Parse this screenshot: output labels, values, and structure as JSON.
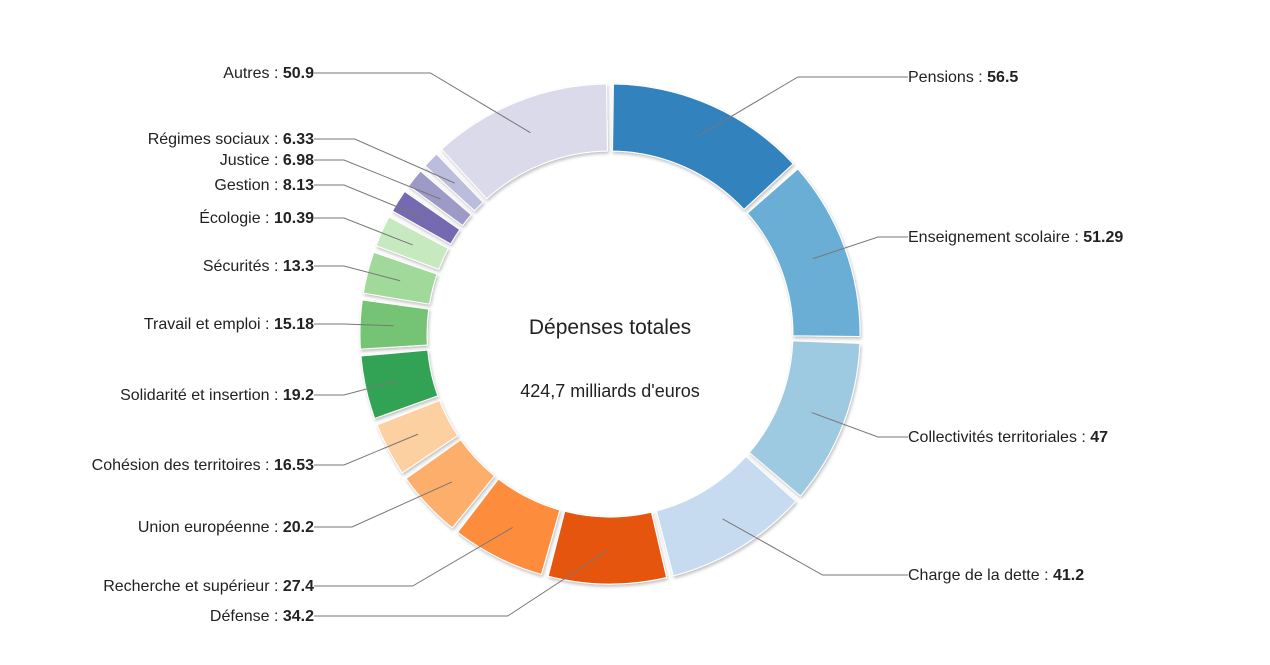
{
  "chart_data": {
    "type": "pie",
    "variant": "donut",
    "center_title": "Dépenses totales",
    "center_subtitle": "424,7 milliards d'euros",
    "legend": "none",
    "slices": [
      {
        "label": "Pensions",
        "value": 56.5,
        "value_text": "56.5",
        "color": "#3182bd",
        "side": "right"
      },
      {
        "label": "Enseignement scolaire",
        "value": 51.29,
        "value_text": "51.29",
        "color": "#6baed6",
        "side": "right"
      },
      {
        "label": "Collectivités territoriales",
        "value": 47,
        "value_text": "47",
        "color": "#9ecae1",
        "side": "right"
      },
      {
        "label": "Charge de la dette",
        "value": 41.2,
        "value_text": "41.2",
        "color": "#c6dbef",
        "side": "right"
      },
      {
        "label": "Défense",
        "value": 34.2,
        "value_text": "34.2",
        "color": "#e6550d",
        "side": "left"
      },
      {
        "label": "Recherche et supérieur",
        "value": 27.4,
        "value_text": "27.4",
        "color": "#fd8d3c",
        "side": "left"
      },
      {
        "label": "Union européenne",
        "value": 20.2,
        "value_text": "20.2",
        "color": "#fdae6b",
        "side": "left"
      },
      {
        "label": "Cohésion des territoires",
        "value": 16.53,
        "value_text": "16.53",
        "color": "#fdd0a2",
        "side": "left"
      },
      {
        "label": "Solidarité et insertion",
        "value": 19.2,
        "value_text": "19.2",
        "color": "#31a354",
        "side": "left"
      },
      {
        "label": "Travail et emploi",
        "value": 15.18,
        "value_text": "15.18",
        "color": "#74c476",
        "side": "left"
      },
      {
        "label": "Sécurités",
        "value": 13.3,
        "value_text": "13.3",
        "color": "#a1d99b",
        "side": "left"
      },
      {
        "label": "Écologie",
        "value": 10.39,
        "value_text": "10.39",
        "color": "#c7e9c0",
        "side": "left"
      },
      {
        "label": "Gestion",
        "value": 8.13,
        "value_text": "8.13",
        "color": "#756bb1",
        "side": "left"
      },
      {
        "label": "Justice",
        "value": 6.98,
        "value_text": "6.98",
        "color": "#9e9ac8",
        "side": "left"
      },
      {
        "label": "Régimes sociaux",
        "value": 6.33,
        "value_text": "6.33",
        "color": "#bcbddc",
        "side": "left"
      },
      {
        "label": "Autres",
        "value": 50.9,
        "value_text": "50.9",
        "color": "#dadaeb",
        "side": "left"
      }
    ]
  }
}
